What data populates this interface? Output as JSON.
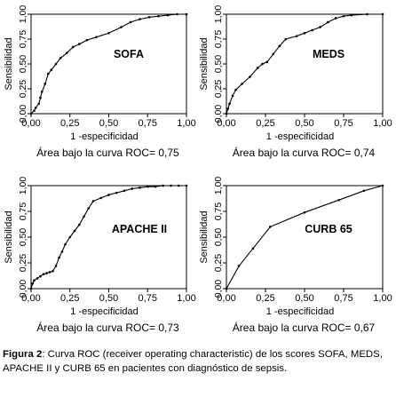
{
  "caption": {
    "label": "Figura 2",
    "text": ": Curva ROC (receiver operating characteristic) de los scores SOFA, MEDS, APACHE II y CURB 65 en pacientes con diagnóstico de sepsis."
  },
  "chart_data": [
    {
      "type": "line",
      "label": "SOFA",
      "xlabel": "1 -especificidad",
      "ylabel": "Sensibilidad",
      "auc_text": "Área bajo la curva ROC= 0,75",
      "xlim": [
        0,
        1
      ],
      "ylim": [
        0,
        1
      ],
      "xticks": [
        "0,00",
        "0,25",
        "0,50",
        "0,75",
        "1,00"
      ],
      "yticks": [
        "0,00",
        "0,25",
        "0,50",
        "0,75",
        "1,00"
      ],
      "x": [
        0,
        0.02,
        0.03,
        0.05,
        0.06,
        0.07,
        0.09,
        0.11,
        0.13,
        0.16,
        0.19,
        0.23,
        0.27,
        0.31,
        0.36,
        0.42,
        0.5,
        0.58,
        0.64,
        0.7,
        0.76,
        0.82,
        0.88,
        0.94,
        1
      ],
      "y": [
        0,
        0.03,
        0.06,
        0.1,
        0.16,
        0.22,
        0.3,
        0.4,
        0.44,
        0.5,
        0.56,
        0.61,
        0.67,
        0.7,
        0.74,
        0.77,
        0.81,
        0.87,
        0.92,
        0.95,
        0.97,
        0.98,
        0.99,
        1,
        1
      ]
    },
    {
      "type": "line",
      "label": "MEDS",
      "xlabel": "1 -especificidad",
      "ylabel": "Sensibilidad",
      "auc_text": "Área bajo la curva ROC= 0,74",
      "xlim": [
        0,
        1
      ],
      "ylim": [
        0,
        1
      ],
      "xticks": [
        "0,00",
        "0,25",
        "0,50",
        "0,75",
        "1,00"
      ],
      "yticks": [
        "0,00",
        "0,25",
        "0,50",
        "0,75",
        "1,00"
      ],
      "x": [
        0,
        0.01,
        0.02,
        0.04,
        0.06,
        0.1,
        0.15,
        0.2,
        0.23,
        0.26,
        0.3,
        0.34,
        0.38,
        0.45,
        0.5,
        0.55,
        0.6,
        0.65,
        0.7,
        0.75,
        0.8,
        0.9,
        1
      ],
      "y": [
        0,
        0.05,
        0.1,
        0.18,
        0.24,
        0.3,
        0.37,
        0.46,
        0.5,
        0.52,
        0.6,
        0.68,
        0.75,
        0.78,
        0.81,
        0.84,
        0.87,
        0.92,
        0.96,
        0.98,
        0.99,
        1,
        1
      ]
    },
    {
      "type": "line",
      "label": "APACHE II",
      "xlabel": "1 -especificidad",
      "ylabel": "Sensibilidad",
      "auc_text": "Área bajo la curva ROC= 0,73",
      "xlim": [
        0,
        1
      ],
      "ylim": [
        0,
        1
      ],
      "xticks": [
        "0,00",
        "0,25",
        "0,50",
        "0,75",
        "1,00"
      ],
      "yticks": [
        "0,00",
        "0,25",
        "0,50",
        "0,75",
        "1,00"
      ],
      "x": [
        0,
        0.01,
        0.02,
        0.04,
        0.06,
        0.08,
        0.1,
        0.12,
        0.14,
        0.16,
        0.18,
        0.2,
        0.22,
        0.25,
        0.28,
        0.31,
        0.34,
        0.37,
        0.4,
        0.45,
        0.5,
        0.55,
        0.6,
        0.65,
        0.7,
        0.75,
        0.8,
        0.85,
        0.9,
        0.95,
        1
      ],
      "y": [
        0,
        0.05,
        0.08,
        0.1,
        0.12,
        0.14,
        0.15,
        0.16,
        0.17,
        0.22,
        0.3,
        0.36,
        0.43,
        0.5,
        0.56,
        0.62,
        0.7,
        0.78,
        0.85,
        0.88,
        0.91,
        0.93,
        0.95,
        0.97,
        0.98,
        0.99,
        0.99,
        1,
        1,
        1,
        1
      ]
    },
    {
      "type": "line",
      "label": "CURB 65",
      "xlabel": "1 -especificidad",
      "ylabel": "Sensibilidad",
      "auc_text": "Área bajo la curva ROC= 0,67",
      "xlim": [
        0,
        1
      ],
      "ylim": [
        0,
        1
      ],
      "xticks": [
        "0,00",
        "0,25",
        "0,50",
        "0,75",
        "1,00"
      ],
      "yticks": [
        "0,00",
        "0,25",
        "0,50",
        "0,75",
        "1,00"
      ],
      "x": [
        0,
        0.08,
        0.17,
        0.28,
        0.5,
        0.72,
        0.88,
        1
      ],
      "y": [
        0,
        0.22,
        0.39,
        0.6,
        0.74,
        0.86,
        0.95,
        1
      ]
    }
  ]
}
